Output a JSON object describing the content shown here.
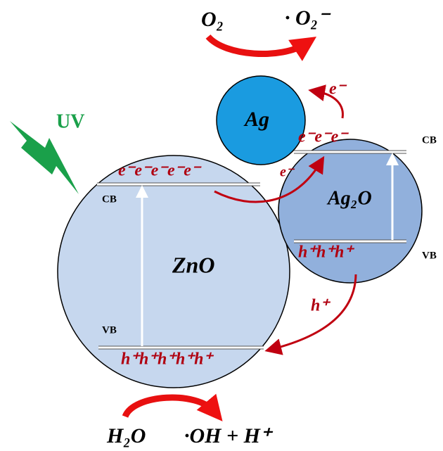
{
  "labels": {
    "o2": "O₂",
    "superoxide": "· O₂⁻",
    "ag_electron": "e⁻",
    "ag": "Ag",
    "uv": "UV",
    "ag2o_cb_electrons": "e⁻e⁻e⁻",
    "ag2o_cb": "CB",
    "zno_cb_electrons": "e⁻e⁻e⁻e⁻e⁻",
    "zno_cb": "CB",
    "transfer_electron": "e⁻",
    "ag2o": "Ag₂O",
    "zno": "ZnO",
    "ag2o_vb_holes": "h⁺h⁺h⁺",
    "ag2o_vb": "VB",
    "transfer_hole": "h⁺",
    "zno_vb": "VB",
    "zno_vb_holes": "h⁺h⁺h⁺h⁺h⁺",
    "h2o": "H₂O",
    "products": "·OH + H⁺"
  }
}
